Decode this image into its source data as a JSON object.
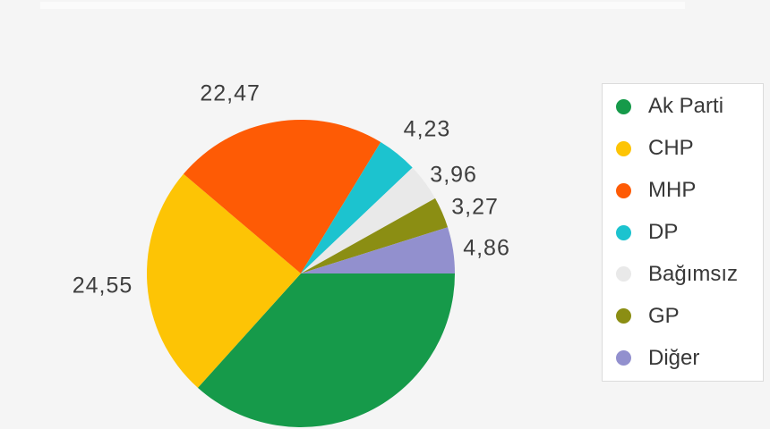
{
  "page": {
    "background": "#f5f5f5"
  },
  "chart_data": {
    "type": "pie",
    "title": "",
    "unit": "%",
    "decimal_separator": ",",
    "direction": "clockwise",
    "start_angle_deg_cw_from_east": 0,
    "label_color": "#3e3e3e",
    "background": "#f5f5f5",
    "legend": {
      "position": "right",
      "background": "#ffffff",
      "border_color": "#dcdcdc"
    },
    "series": [
      {
        "name": "Ak Parti",
        "value": 36.66,
        "label": "",
        "label_visible": false,
        "color": "#169a4a",
        "label_dx": 0,
        "label_dy": 0
      },
      {
        "name": "CHP",
        "value": 24.55,
        "label": "24,55",
        "label_visible": true,
        "color": "#fdc405",
        "label_dx": -10,
        "label_dy": 0
      },
      {
        "name": "MHP",
        "value": 22.47,
        "label": "22,47",
        "label_visible": true,
        "color": "#fe5b05",
        "label_dx": -45,
        "label_dy": 8
      },
      {
        "name": "DP",
        "value": 4.23,
        "label": "4,23",
        "label_visible": true,
        "color": "#1cc3cf",
        "label_dx": 8,
        "label_dy": 4
      },
      {
        "name": "Bağımsız",
        "value": 3.96,
        "label": "3,96",
        "label_visible": true,
        "color": "#e9e9e9",
        "label_dx": 0,
        "label_dy": 16
      },
      {
        "name": "GP",
        "value": 3.27,
        "label": "3,27",
        "label_visible": true,
        "color": "#8b8e13",
        "label_dx": 0,
        "label_dy": 10
      },
      {
        "name": "Diğer",
        "value": 4.86,
        "label": "4,86",
        "label_visible": true,
        "color": "#9290ce",
        "label_dx": -2,
        "label_dy": 4
      }
    ]
  }
}
